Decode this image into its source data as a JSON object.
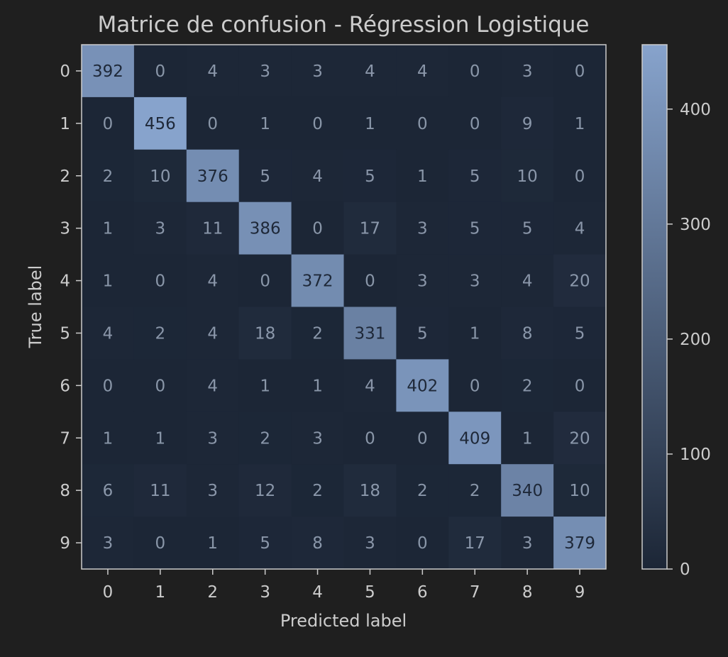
{
  "chart_data": {
    "type": "heatmap",
    "title": "Matrice de confusion - Régression Logistique",
    "xlabel": "Predicted label",
    "ylabel": "True label",
    "x_categories": [
      "0",
      "1",
      "2",
      "3",
      "4",
      "5",
      "6",
      "7",
      "8",
      "9"
    ],
    "y_categories": [
      "0",
      "1",
      "2",
      "3",
      "4",
      "5",
      "6",
      "7",
      "8",
      "9"
    ],
    "values": [
      [
        392,
        0,
        4,
        3,
        3,
        4,
        4,
        0,
        3,
        0
      ],
      [
        0,
        456,
        0,
        1,
        0,
        1,
        0,
        0,
        9,
        1
      ],
      [
        2,
        10,
        376,
        5,
        4,
        5,
        1,
        5,
        10,
        0
      ],
      [
        1,
        3,
        11,
        386,
        0,
        17,
        3,
        5,
        5,
        4
      ],
      [
        1,
        0,
        4,
        0,
        372,
        0,
        3,
        3,
        4,
        20
      ],
      [
        4,
        2,
        4,
        18,
        2,
        331,
        5,
        1,
        8,
        5
      ],
      [
        0,
        0,
        4,
        1,
        1,
        4,
        402,
        0,
        2,
        0
      ],
      [
        1,
        1,
        3,
        2,
        3,
        0,
        0,
        409,
        1,
        20
      ],
      [
        6,
        11,
        3,
        12,
        2,
        18,
        2,
        2,
        340,
        10
      ],
      [
        3,
        0,
        1,
        5,
        8,
        3,
        0,
        17,
        3,
        379
      ]
    ],
    "colorbar": {
      "ticks": [
        0,
        100,
        200,
        300,
        400
      ],
      "range": [
        0,
        456
      ]
    },
    "colors": {
      "background": "#1f1f1f",
      "low": "#1c2636",
      "high": "#87a3cc",
      "text_light": "#c5d2e6",
      "text_dark": "#1e2838",
      "axis": "#cccccc"
    }
  }
}
